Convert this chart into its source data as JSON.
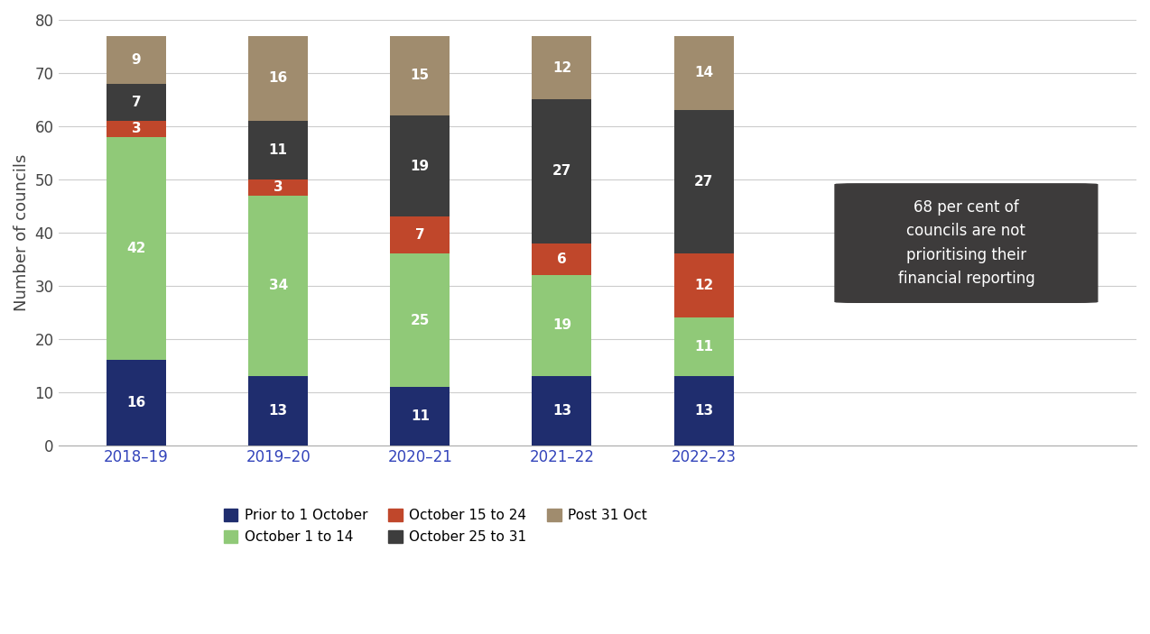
{
  "categories": [
    "2018–19",
    "2019–20",
    "2020–21",
    "2021–22",
    "2022–23"
  ],
  "series_order": [
    "Prior to 1 October",
    "October 1 to 14",
    "October 15 to 24",
    "October 25 to 31",
    "Post 31 Oct"
  ],
  "series": {
    "Prior to 1 October": [
      16,
      13,
      11,
      13,
      13
    ],
    "October 1 to 14": [
      42,
      34,
      25,
      19,
      11
    ],
    "October 15 to 24": [
      3,
      3,
      7,
      6,
      12
    ],
    "October 25 to 31": [
      7,
      11,
      19,
      27,
      27
    ],
    "Post 31 Oct": [
      9,
      16,
      15,
      12,
      14
    ]
  },
  "colors": {
    "Prior to 1 October": "#1f2d6e",
    "October 1 to 14": "#90c978",
    "October 15 to 24": "#c0472b",
    "October 25 to 31": "#3d3d3d",
    "Post 31 Oct": "#a08c6e"
  },
  "ylabel": "Number of councils",
  "ylim": [
    0,
    80
  ],
  "yticks": [
    0,
    10,
    20,
    30,
    40,
    50,
    60,
    70,
    80
  ],
  "annotation_text": "68 per cent of\ncouncils are not\nprioritising their\nfinancial reporting",
  "xlabel_color": "#3344bb",
  "bar_width": 0.42,
  "bubble_color": "#3d3b3b",
  "bubble_text_color": "#ffffff",
  "bubble_fontsize": 12,
  "legend_fontsize": 11,
  "ylabel_fontsize": 13,
  "tick_fontsize": 12,
  "value_fontsize": 11
}
